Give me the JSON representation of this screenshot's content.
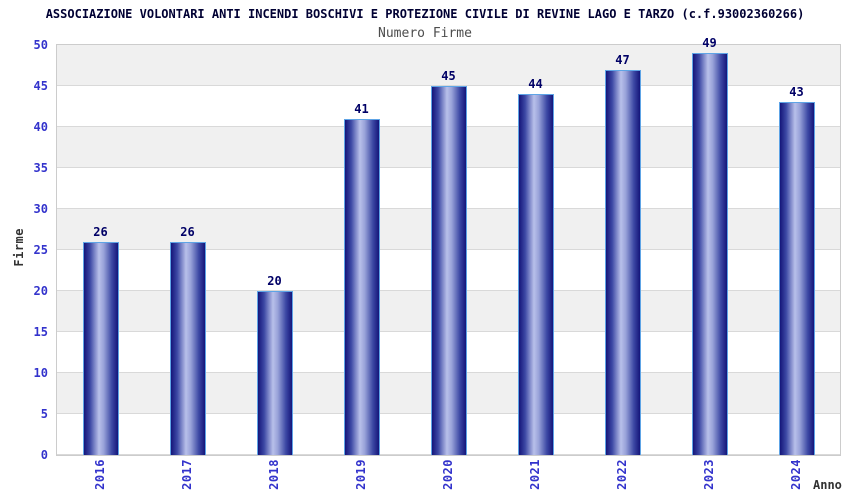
{
  "title": "ASSOCIAZIONE VOLONTARI ANTI INCENDI BOSCHIVI E PROTEZIONE CIVILE DI REVINE LAGO E TARZO (c.f.93002360266)",
  "subtitle": "Numero Firme",
  "chart_data": {
    "type": "bar",
    "title": "Numero Firme",
    "categories": [
      "2016",
      "2017",
      "2018",
      "2019",
      "2020",
      "2021",
      "2022",
      "2023",
      "2024"
    ],
    "values": [
      26,
      26,
      20,
      41,
      45,
      44,
      47,
      49,
      43
    ],
    "xlabel": "Anno",
    "ylabel": "Firme",
    "ylim": [
      0,
      50
    ],
    "y_ticks": [
      0,
      5,
      10,
      15,
      20,
      25,
      30,
      35,
      40,
      45,
      50
    ],
    "grid": "horizontal alternating gray/white bands with light gridlines every 5 units",
    "legend": "none",
    "bar_value_labels_shown": true,
    "x_tick_rotation": "vertical"
  },
  "colors": {
    "background": "#ffffff",
    "title_text": "#000033",
    "subtitle_text": "#4d4d4d",
    "tick_label": "#3333cc",
    "bar_value_label": "#000066",
    "axis_title_text": "#333333",
    "band_gray": "#f0f0f0",
    "grid_line": "#d9d9d9",
    "plot_border": "#cccccc",
    "bar_border": "#5ea4e6",
    "bar_dark": "#15157a",
    "bar_mid": "#3c48a4",
    "bar_light": "#b8c0ea",
    "bar_light2": "#99a3d9"
  }
}
